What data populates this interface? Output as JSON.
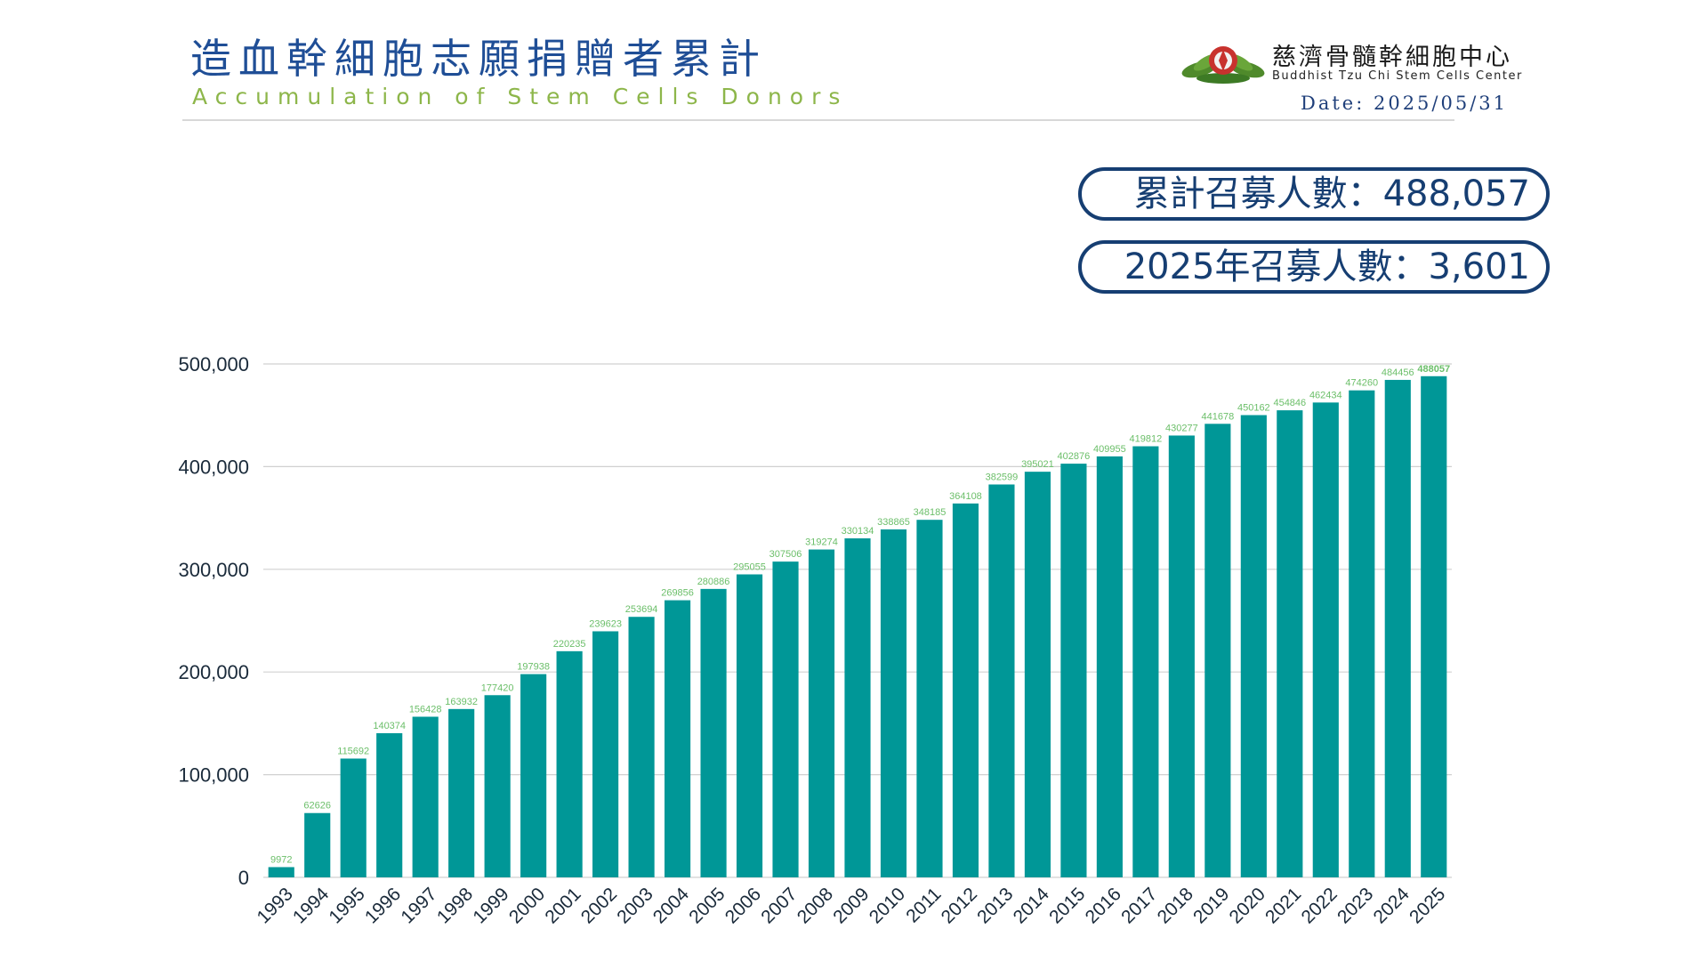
{
  "header": {
    "title_zh": "造血幹細胞志願捐贈者累計",
    "title_en": "Accumulation of Stem Cells Donors",
    "org_name_zh": "慈濟骨髓幹細胞中心",
    "org_name_en": "Buddhist Tzu Chi Stem Cells Center",
    "date": "Date: 2025/05/31",
    "logo_icon": "tzu-chi-lotus-logo-icon"
  },
  "summary": {
    "total_label": "累計召募人數：488,057",
    "year_label": "2025年召募人數：3,601"
  },
  "colors": {
    "bar": "#009797",
    "label": "#6cbf6a",
    "title": "#1f4e96",
    "subtitle": "#8db64a",
    "pill": "#163e72",
    "axis_text": "#1a2a3a"
  },
  "chart_data": {
    "type": "bar",
    "title": "",
    "xlabel": "",
    "ylabel": "",
    "ylim": [
      0,
      500000
    ],
    "yticks": [
      0,
      100000,
      200000,
      300000,
      400000,
      500000
    ],
    "ytick_labels": [
      "0",
      "100,000",
      "200,000",
      "300,000",
      "400,000",
      "500,000"
    ],
    "grid": true,
    "categories": [
      "1993",
      "1994",
      "1995",
      "1996",
      "1997",
      "1998",
      "1999",
      "2000",
      "2001",
      "2002",
      "2003",
      "2004",
      "2005",
      "2006",
      "2007",
      "2008",
      "2009",
      "2010",
      "2011",
      "2012",
      "2013",
      "2014",
      "2015",
      "2016",
      "2017",
      "2018",
      "2019",
      "2020",
      "2021",
      "2022",
      "2023",
      "2024",
      "2025"
    ],
    "values": [
      9972,
      62626,
      115692,
      140374,
      156428,
      163932,
      177420,
      197938,
      220235,
      239623,
      253694,
      269856,
      280886,
      295055,
      307506,
      319274,
      330134,
      338865,
      348185,
      364108,
      382599,
      395021,
      402876,
      409955,
      419812,
      430277,
      441678,
      450162,
      454846,
      462434,
      474260,
      484456,
      488057
    ],
    "data_labels": [
      "9972",
      "62626",
      "115692",
      "140374",
      "156428",
      "163932",
      "177420",
      "197938",
      "220235",
      "239623",
      "253694",
      "269856",
      "280886",
      "295055",
      "307506",
      "319274",
      "330134",
      "338865",
      "348185",
      "364108",
      "382599",
      "395021",
      "402876",
      "409955",
      "419812",
      "430277",
      "441678",
      "450162",
      "454846",
      "462434",
      "474260",
      "484456",
      "488057"
    ]
  }
}
